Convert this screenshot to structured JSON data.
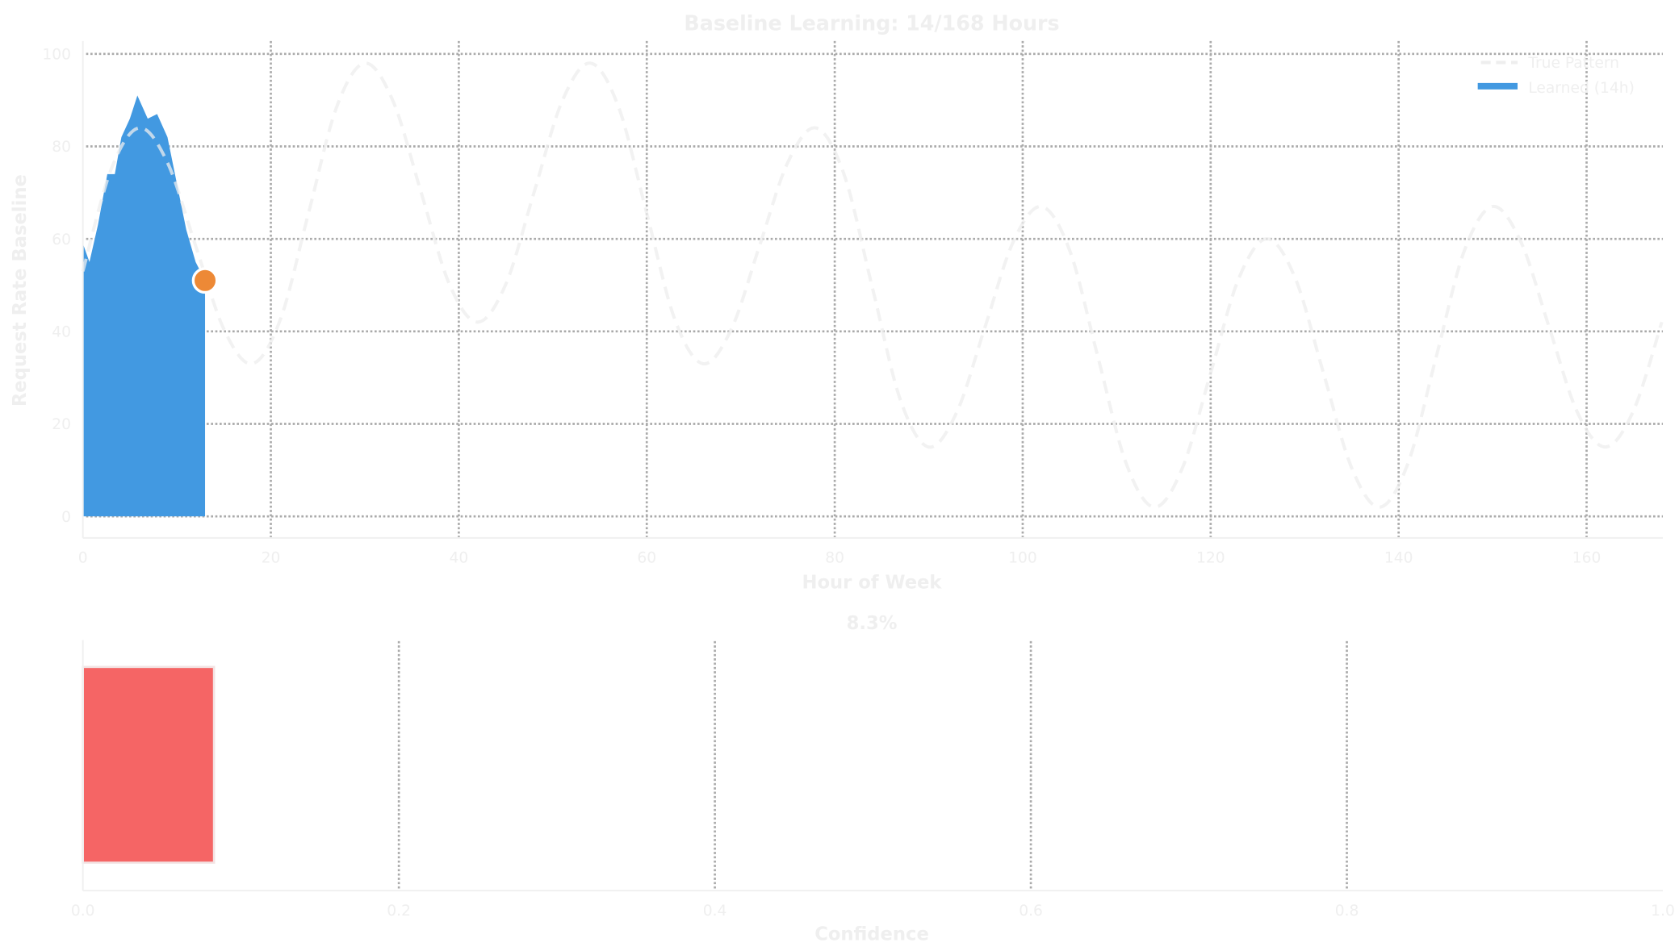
{
  "chart_data": [
    {
      "type": "area",
      "title": "Baseline Learning: 14/168 Hours",
      "xlabel": "Hour of Week",
      "ylabel": "Request Rate Baseline",
      "xlim": [
        0,
        168
      ],
      "ylim": [
        -5,
        103
      ],
      "xticks": [
        0,
        20,
        40,
        60,
        80,
        100,
        120,
        140,
        160
      ],
      "yticks": [
        0,
        20,
        40,
        60,
        80,
        100
      ],
      "grid": true,
      "legend_position": "top-right",
      "series": [
        {
          "name": "True Pattern",
          "style": "dashed-line",
          "color": "#eeeeee",
          "x": [
            0,
            3,
            6,
            9,
            12,
            15,
            18,
            21,
            24,
            27,
            30,
            33,
            36,
            39,
            42,
            45,
            48,
            51,
            54,
            57,
            60,
            63,
            66,
            69,
            72,
            75,
            78,
            81,
            84,
            87,
            90,
            93,
            96,
            99,
            102,
            105,
            108,
            111,
            114,
            117,
            120,
            123,
            126,
            129,
            132,
            135,
            138,
            141,
            144,
            147,
            150,
            153,
            156,
            159,
            162,
            165,
            168
          ],
          "y": [
            53,
            75,
            84,
            76.5,
            58.5,
            40.5,
            33,
            42.5,
            65.5,
            88.5,
            98,
            89.8,
            70,
            50.2,
            42,
            50.2,
            70,
            89.8,
            98,
            88.5,
            65.5,
            42.5,
            33,
            40.5,
            58.5,
            76.5,
            84,
            73.9,
            49.5,
            25.1,
            15,
            22.6,
            41,
            59.4,
            67,
            57.5,
            34.5,
            11.5,
            2,
            10.5,
            31,
            51.5,
            60,
            51.5,
            31,
            10.5,
            2,
            11.5,
            34.5,
            57.5,
            67,
            59.4,
            41,
            22.6,
            15,
            22.9,
            42
          ]
        },
        {
          "name": "Learned (14h)",
          "style": "filled-area",
          "color": "#4299e1",
          "x": [
            0,
            0.7,
            1.6,
            2.6,
            3.4,
            4.1,
            5,
            5.8,
            6.9,
            7.9,
            9,
            10,
            11,
            12,
            13
          ],
          "y": [
            59,
            55,
            63,
            74,
            74,
            82,
            86,
            91,
            86,
            87,
            82,
            72,
            62,
            55,
            51
          ]
        }
      ],
      "current_point": {
        "x": 13,
        "y": 51,
        "color": "#ed8936"
      }
    },
    {
      "type": "bar",
      "orientation": "horizontal",
      "title": "8.3%",
      "xlabel": "Confidence",
      "xlim": [
        0,
        1
      ],
      "xticks": [
        "0.0",
        "0.2",
        "0.4",
        "0.6",
        "0.8",
        "1.0"
      ],
      "grid": true,
      "values": [
        0.083
      ],
      "color": "#f56565"
    }
  ]
}
